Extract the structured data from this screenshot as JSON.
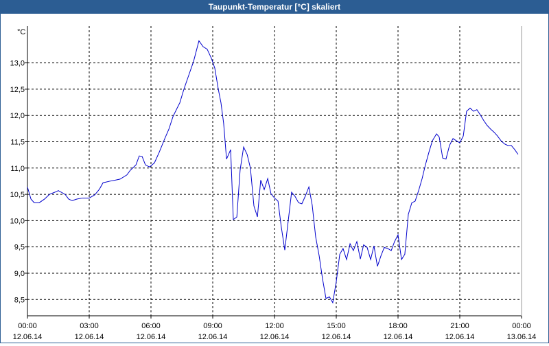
{
  "chart_data": {
    "type": "line",
    "title": "Taupunkt-Temperatur [°C] skaliert",
    "ylabel": "°C",
    "xlim": [
      0,
      24
    ],
    "xticks": [
      {
        "value": 0,
        "label": "00:00"
      },
      {
        "value": 3,
        "label": "03:00"
      },
      {
        "value": 6,
        "label": "06:00"
      },
      {
        "value": 9,
        "label": "09:00"
      },
      {
        "value": 12,
        "label": "12:00"
      },
      {
        "value": 15,
        "label": "15:00"
      },
      {
        "value": 18,
        "label": "18:00"
      },
      {
        "value": 21,
        "label": "21:00"
      },
      {
        "value": 24,
        "label": "00:00"
      }
    ],
    "xtick_dates": [
      "12.06.14",
      "12.06.14",
      "12.06.14",
      "12.06.14",
      "12.06.14",
      "12.06.14",
      "12.06.14",
      "12.06.14",
      "13.06.14"
    ],
    "ylim": [
      8.19,
      13.7
    ],
    "yticks": [
      {
        "value": 8.5,
        "label": "8,5"
      },
      {
        "value": 9,
        "label": "9,0"
      },
      {
        "value": 9.5,
        "label": "9,5"
      },
      {
        "value": 10,
        "label": "10,0"
      },
      {
        "value": 10.5,
        "label": "10,5"
      },
      {
        "value": 11,
        "label": "11,0"
      },
      {
        "value": 11.5,
        "label": "11,5"
      },
      {
        "value": 12,
        "label": "12,0"
      },
      {
        "value": 12.5,
        "label": "12,5"
      },
      {
        "value": 13,
        "label": "13,0"
      }
    ],
    "grid": true,
    "x": [
      0,
      0.17,
      0.33,
      0.57,
      0.83,
      1.07,
      1.33,
      1.5,
      1.83,
      2,
      2.17,
      2.4,
      2.67,
      3,
      3.27,
      3.5,
      3.67,
      4,
      4.27,
      4.5,
      4.83,
      5,
      5.27,
      5.43,
      5.57,
      5.73,
      5.93,
      6.17,
      6.4,
      6.67,
      6.87,
      7.07,
      7.27,
      7.4,
      7.6,
      7.83,
      8.07,
      8.33,
      8.53,
      8.73,
      8.93,
      9.1,
      9.27,
      9.4,
      9.53,
      9.67,
      9.87,
      10,
      10.17,
      10.33,
      10.5,
      10.67,
      10.83,
      11,
      11.17,
      11.33,
      11.5,
      11.67,
      11.83,
      12,
      12.17,
      12.33,
      12.5,
      12.83,
      13,
      13.17,
      13.33,
      13.5,
      13.67,
      13.83,
      14,
      14.17,
      14.33,
      14.5,
      14.67,
      14.83,
      15,
      15.17,
      15.33,
      15.5,
      15.67,
      15.83,
      16,
      16.17,
      16.33,
      16.5,
      16.67,
      16.83,
      17,
      17.17,
      17.33,
      17.5,
      17.67,
      17.83,
      18,
      18.17,
      18.33,
      18.5,
      18.67,
      18.83,
      19,
      19.17,
      19.33,
      19.5,
      19.67,
      19.87,
      20,
      20.17,
      20.33,
      20.5,
      20.67,
      20.83,
      21,
      21.17,
      21.33,
      21.5,
      21.67,
      21.83,
      22,
      22.17,
      22.33,
      22.5,
      22.67,
      22.83,
      23,
      23.17,
      23.33,
      23.5,
      23.67,
      23.83
    ],
    "series": [
      {
        "color": "#0000cc",
        "values": [
          10.64,
          10.41,
          10.34,
          10.34,
          10.41,
          10.5,
          10.54,
          10.57,
          10.5,
          10.41,
          10.38,
          10.41,
          10.43,
          10.43,
          10.49,
          10.6,
          10.72,
          10.75,
          10.77,
          10.79,
          10.87,
          10.96,
          11.06,
          11.23,
          11.22,
          11.06,
          11.02,
          11.1,
          11.3,
          11.56,
          11.74,
          11.98,
          12.14,
          12.24,
          12.5,
          12.76,
          13.03,
          13.42,
          13.31,
          13.26,
          13.09,
          12.9,
          12.5,
          12.24,
          11.85,
          11.17,
          11.35,
          10.02,
          10.07,
          10.96,
          11.4,
          11.26,
          11.0,
          10.28,
          10.07,
          10.77,
          10.59,
          10.8,
          10.51,
          10.43,
          10.37,
          9.88,
          9.44,
          10.54,
          10.46,
          10.34,
          10.32,
          10.47,
          10.64,
          10.3,
          9.69,
          9.33,
          8.9,
          8.52,
          8.55,
          8.44,
          8.84,
          9.36,
          9.47,
          9.26,
          9.56,
          9.43,
          9.6,
          9.27,
          9.54,
          9.49,
          9.26,
          9.52,
          9.13,
          9.33,
          9.49,
          9.47,
          9.43,
          9.6,
          9.73,
          9.26,
          9.36,
          10.12,
          10.34,
          10.37,
          10.57,
          10.8,
          11.06,
          11.3,
          11.52,
          11.65,
          11.59,
          11.19,
          11.17,
          11.43,
          11.56,
          11.52,
          11.48,
          11.61,
          12.08,
          12.14,
          12.08,
          12.11,
          12.01,
          11.9,
          11.81,
          11.74,
          11.68,
          11.61,
          11.52,
          11.46,
          11.43,
          11.43,
          11.35,
          11.26
        ]
      }
    ]
  }
}
